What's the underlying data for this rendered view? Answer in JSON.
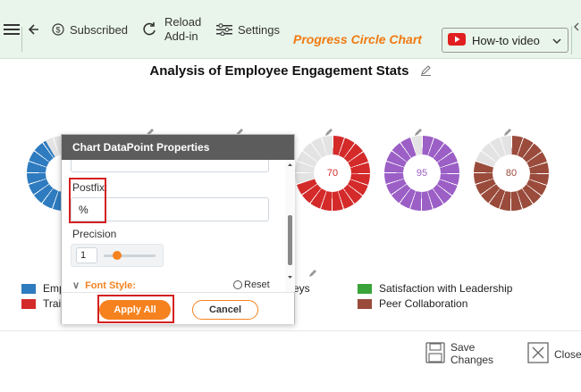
{
  "toolbar": {
    "subscribed_label": "Subscribed",
    "reload_label_1": "Reload",
    "reload_label_2": "Add-in",
    "settings_label": "Settings",
    "brand": "Progress Circle Chart",
    "howto_label": "How-to video"
  },
  "chart": {
    "title": "Analysis of Employee Engagement Stats"
  },
  "chart_data": {
    "type": "donut-progress",
    "title": "Analysis of Employee Engagement Stats",
    "series": [
      {
        "name": "Emp",
        "value": null,
        "color": "#2e7bc0"
      },
      {
        "name": "Trai",
        "value": null,
        "color": "#d42a2a"
      },
      {
        "name": "rveys",
        "value": 70,
        "color": "#d42a2a"
      },
      {
        "name": "Satisfaction with Leadership",
        "value": 95,
        "color": "#9b5fc6"
      },
      {
        "name": "Peer Collaboration",
        "value": 80,
        "color": "#9a4b3b"
      }
    ],
    "labels": [
      "70",
      "95",
      "80"
    ]
  },
  "legend": {
    "item1": "Emp",
    "item2": "Trai",
    "item3": "rveys",
    "item4": "Satisfaction with Leadership",
    "item5": "Peer Collaboration"
  },
  "dialog": {
    "title": "Chart DataPoint Properties",
    "postfix_label": "Postfix:",
    "postfix_value": "%",
    "precision_label": "Precision",
    "precision_value": "1",
    "font_style_label": "Font Style:",
    "reset_label": "Reset",
    "apply_label": "Apply All",
    "cancel_label": "Cancel"
  },
  "footer": {
    "save_1": "Save",
    "save_2": "Changes",
    "close": "Close"
  },
  "colors": {
    "accent": "#f5821f",
    "toolbar_bg": "#e9f5ea",
    "highlight": "#d42020"
  }
}
